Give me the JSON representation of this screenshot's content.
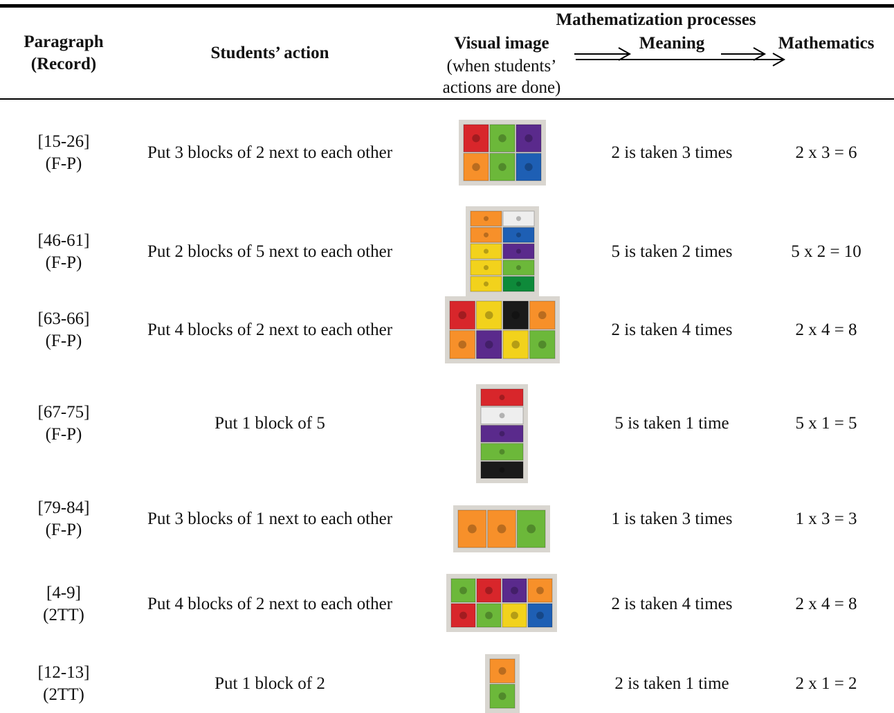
{
  "table": {
    "header": {
      "paragraph": "Paragraph",
      "record": "(Record)",
      "action": "Students’ action",
      "group": "Mathematization processes",
      "visual": "Visual image",
      "visual_note": [
        "(when students’",
        "actions are done)"
      ],
      "meaning": "Meaning",
      "mathematics": "Mathematics"
    },
    "rows": [
      {
        "paragraph": "[15-26]",
        "record": "(F-P)",
        "action": "Put 3 blocks of 2 next to each other",
        "meaning": "2 is taken 3 times",
        "mathematics": "2 x 3 = 6"
      },
      {
        "paragraph": "[46-61]",
        "record": "(F-P)",
        "action": "Put 2 blocks of 5 next to each other",
        "meaning": "5 is taken 2 times",
        "mathematics": "5 x 2 = 10"
      },
      {
        "paragraph": "[63-66]",
        "record": "(F-P)",
        "action": "Put 4 blocks of 2 next to each other",
        "meaning": "2 is taken 4 times",
        "mathematics": "2 x 4 = 8"
      },
      {
        "paragraph": "[67-75]",
        "record": "(F-P)",
        "action": "Put 1 block of 5",
        "meaning": "5 is taken 1 time",
        "mathematics": "5 x 1 = 5"
      },
      {
        "paragraph": "[79-84]",
        "record": "(F-P)",
        "action": "Put 3 blocks of 1 next to each other",
        "meaning": "1 is taken 3 times",
        "mathematics": "1 x 3 = 3"
      },
      {
        "paragraph": "[4-9]",
        "record": "(2TT)",
        "action": "Put 4 blocks of 2 next to each other",
        "meaning": "2 is taken 4 times",
        "mathematics": "2 x 4 = 8"
      },
      {
        "paragraph": "[12-13]",
        "record": "(2TT)",
        "action": "Put 1 block of 2",
        "meaning": "2 is taken 1 time",
        "mathematics": "2 x 1 = 2"
      }
    ]
  }
}
